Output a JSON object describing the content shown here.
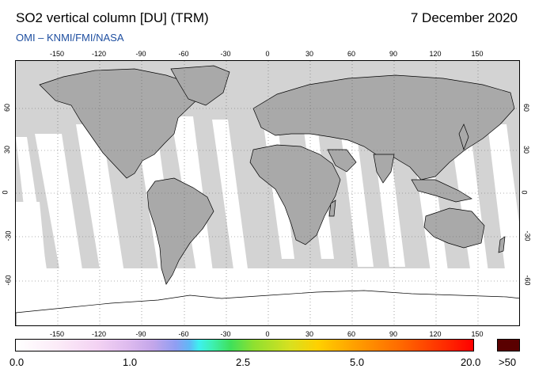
{
  "header": {
    "title": "SO2 vertical column [DU] (TRM)",
    "date": "7 December 2020",
    "credit": "OMI  –  KNMI/FMI/NASA"
  },
  "map": {
    "lon_ticks": [
      "-150",
      "-120",
      "-90",
      "-60",
      "-30",
      "0",
      "30",
      "60",
      "90",
      "120",
      "150"
    ],
    "lat_ticks": [
      "60",
      "30",
      "0",
      "-30",
      "-60"
    ],
    "colors": {
      "background": "#d3d3d3",
      "land": "#a9a9a9",
      "swath": "#ffffff",
      "coastline": "#000000",
      "grid": "#666666"
    }
  },
  "colorbar": {
    "labels": [
      "0.0",
      "1.0",
      "2.5",
      "5.0",
      "20.0"
    ],
    "over_label": ">50",
    "over_color": "#5a0000"
  }
}
